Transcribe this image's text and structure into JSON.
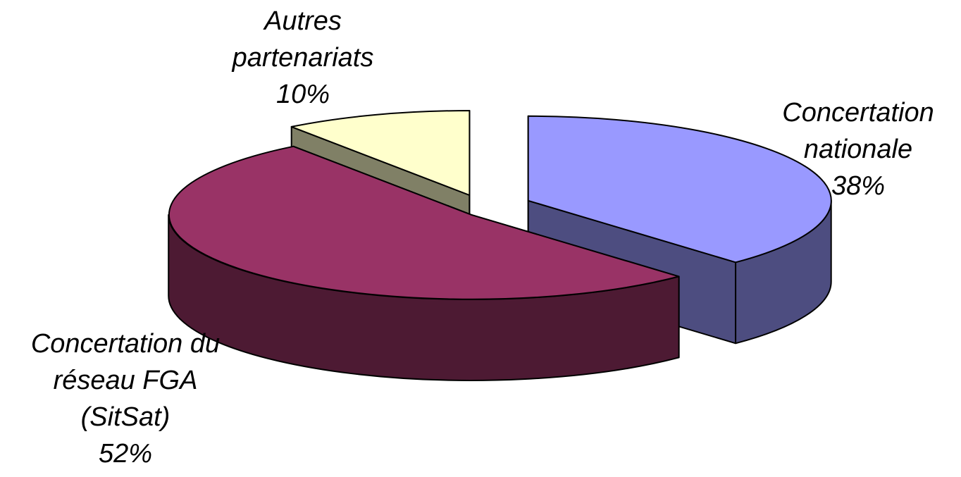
{
  "chart_data": {
    "type": "pie",
    "style": "3d-exploded",
    "title": "",
    "legend": "none",
    "slices": [
      {
        "key": "concertation-nationale",
        "label_lines": [
          "Concertation",
          "nationale"
        ],
        "value": 38,
        "display": "38%",
        "color_top": "#9999ff",
        "color_side": "#4d4d80"
      },
      {
        "key": "concertation-du-reseau-fga",
        "label_lines": [
          "Concertation du",
          "réseau FGA",
          "(SitSat)"
        ],
        "value": 52,
        "display": "52%",
        "color_top": "#993366",
        "color_side": "#4d1a33"
      },
      {
        "key": "autres-partenariats",
        "label_lines": [
          "Autres",
          "partenariats"
        ],
        "value": 10,
        "display": "10%",
        "color_top": "#ffffcc",
        "color_side": "#808066"
      }
    ]
  }
}
